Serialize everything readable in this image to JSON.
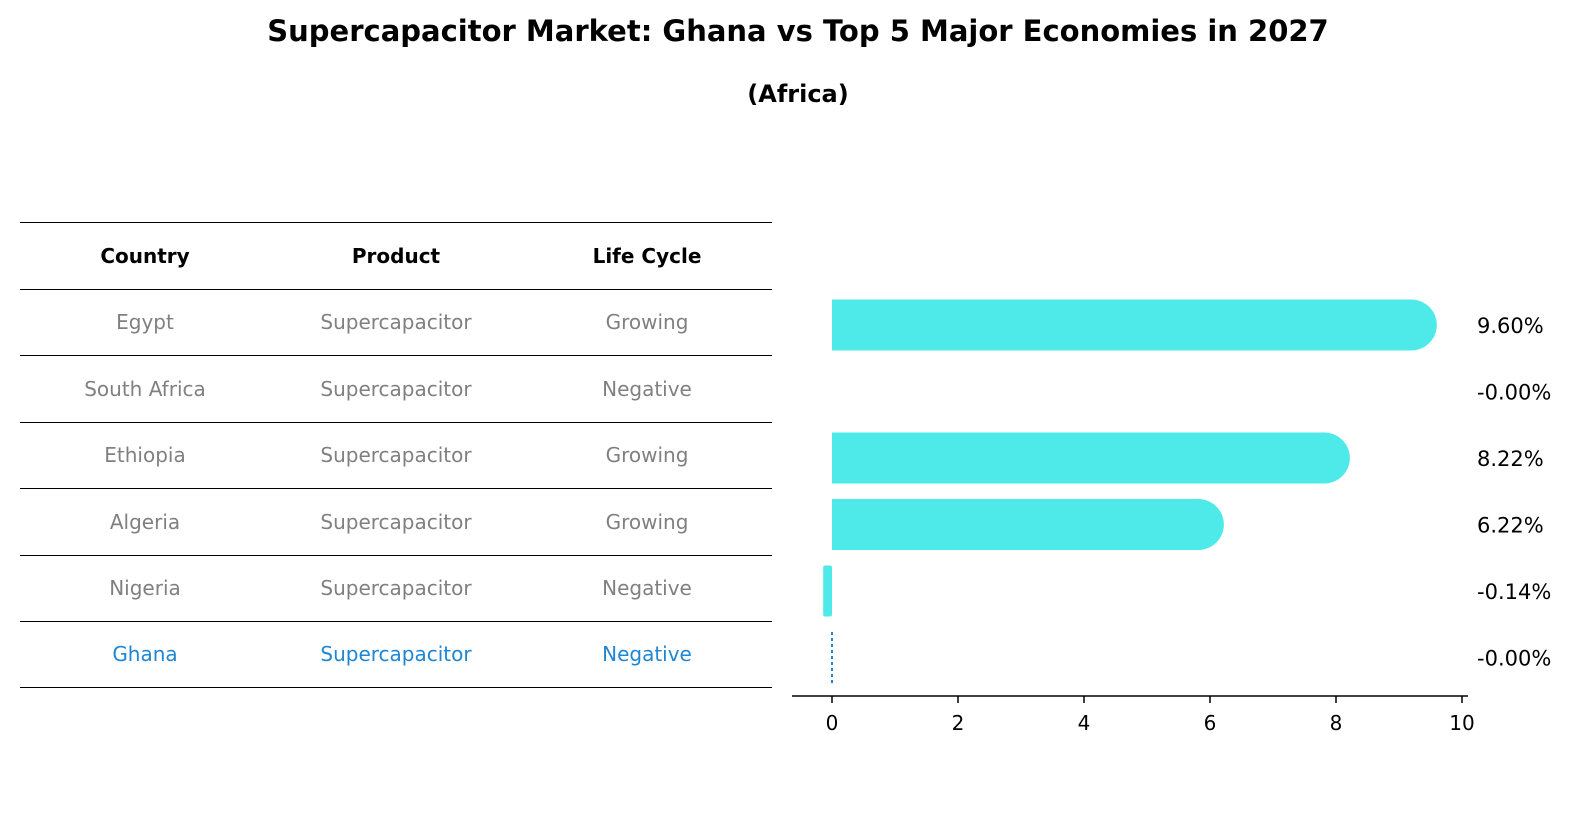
{
  "title": "Supercapacitor Market: Ghana vs Top 5 Major Economies in 2027",
  "subtitle": "(Africa)",
  "table": {
    "headers": [
      "Country",
      "Product",
      "Life Cycle"
    ],
    "rows": [
      [
        "Egypt",
        "Supercapacitor",
        "Growing"
      ],
      [
        "South Africa",
        "Supercapacitor",
        "Negative"
      ],
      [
        "Ethiopia",
        "Supercapacitor",
        "Growing"
      ],
      [
        "Algeria",
        "Supercapacitor",
        "Growing"
      ],
      [
        "Nigeria",
        "Supercapacitor",
        "Negative"
      ],
      [
        "Ghana",
        "Supercapacitor",
        "Negative"
      ]
    ],
    "highlight_row": 5
  },
  "colors": {
    "bar": "#4deae9",
    "highlight": "#1f86d2",
    "muted": "#808080"
  },
  "chart_data": {
    "type": "bar",
    "orientation": "horizontal",
    "title": "Supercapacitor Market: Ghana vs Top 5 Major Economies in 2027",
    "subtitle": "(Africa)",
    "categories": [
      "Egypt",
      "South Africa",
      "Ethiopia",
      "Algeria",
      "Nigeria",
      "Ghana"
    ],
    "values": [
      9.6,
      -0.0,
      8.22,
      6.22,
      -0.14,
      -0.0
    ],
    "value_labels": [
      "9.60%",
      "-0.00%",
      "8.22%",
      "6.22%",
      "-0.14%",
      "-0.00%"
    ],
    "xlim": [
      -0.6,
      10.1
    ],
    "xticks": [
      0,
      2,
      4,
      6,
      8,
      10
    ],
    "xlabel": "",
    "ylabel": "",
    "grid": false,
    "highlight_category": "Ghana",
    "highlight_style": "dotted-line"
  }
}
